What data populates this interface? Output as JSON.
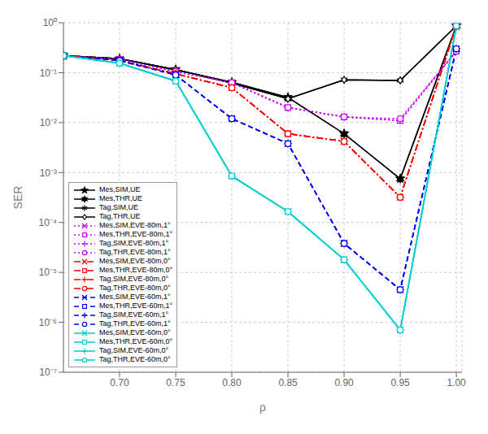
{
  "chart_data": {
    "type": "line",
    "xlabel": "ρ",
    "ylabel": "SER",
    "log": "y",
    "grid": true,
    "legend": "lower left",
    "xlim": [
      0.65,
      1.005
    ],
    "ylim": [
      1e-07,
      1.0
    ],
    "xticks": [
      {
        "value": 0.7,
        "label": "0.70"
      },
      {
        "value": 0.75,
        "label": "0.75"
      },
      {
        "value": 0.8,
        "label": "0.80"
      },
      {
        "value": 0.85,
        "label": "0.85"
      },
      {
        "value": 0.9,
        "label": "0.90"
      },
      {
        "value": 0.95,
        "label": "0.95"
      },
      {
        "value": 1.0,
        "label": "1.00"
      }
    ],
    "yticks": [
      {
        "value": 1e-07,
        "label": "10⁻⁷"
      },
      {
        "value": 1e-06,
        "label": "10⁻⁶"
      },
      {
        "value": 1e-05,
        "label": "10⁻⁵"
      },
      {
        "value": 0.0001,
        "label": "10⁻⁴"
      },
      {
        "value": 0.001,
        "label": "10⁻³"
      },
      {
        "value": 0.01,
        "label": "10⁻²"
      },
      {
        "value": 0.1,
        "label": "10⁻¹"
      },
      {
        "value": 1,
        "label": "10⁰"
      }
    ],
    "x": [
      0.65,
      0.7,
      0.75,
      0.8,
      0.85,
      0.9,
      0.95,
      1.0
    ],
    "series": [
      {
        "name": "Mes,SIM,UE",
        "color": "#000000",
        "line_style": "solid",
        "marker": "star",
        "values": [
          0.22,
          0.19,
          0.115,
          0.064,
          0.032,
          0.006,
          0.00075,
          0.87
        ]
      },
      {
        "name": "Mes,THR,UE",
        "color": "#000000",
        "line_style": "solid",
        "marker": "star6",
        "values": [
          0.22,
          0.19,
          0.115,
          0.064,
          0.032,
          0.006,
          0.00075,
          0.87
        ]
      },
      {
        "name": "Tag,SIM,UE",
        "color": "#000000",
        "line_style": "solid",
        "marker": "asterisk",
        "values": [
          0.22,
          0.19,
          0.115,
          0.062,
          0.03,
          0.072,
          0.07,
          0.87
        ]
      },
      {
        "name": "Tag,THR,UE",
        "color": "#000000",
        "line_style": "solid",
        "marker": "diamond",
        "values": [
          0.22,
          0.19,
          0.115,
          0.062,
          0.03,
          0.072,
          0.07,
          0.87
        ]
      },
      {
        "name": "Mes,SIM,EVE-80m,1°",
        "color": "#CC00FF",
        "line_style": "dotted",
        "marker": "x",
        "values": [
          0.22,
          0.185,
          0.105,
          0.063,
          0.02,
          0.013,
          0.011,
          0.27
        ]
      },
      {
        "name": "Mes,THR,EVE-80m,1°",
        "color": "#CC00FF",
        "line_style": "dotted",
        "marker": "square",
        "values": [
          0.22,
          0.185,
          0.105,
          0.063,
          0.02,
          0.013,
          0.011,
          0.27
        ]
      },
      {
        "name": "Tag,SIM,EVE-80m,1°",
        "color": "#CC00FF",
        "line_style": "dotted",
        "marker": "plus",
        "values": [
          0.22,
          0.185,
          0.105,
          0.063,
          0.02,
          0.013,
          0.011,
          0.27
        ]
      },
      {
        "name": "Tag,THR,EVE-80m,1°",
        "color": "#CC00FF",
        "line_style": "dotted",
        "marker": "circle",
        "values": [
          0.22,
          0.185,
          0.105,
          0.063,
          0.02,
          0.013,
          0.012,
          0.27
        ]
      },
      {
        "name": "Mes,SIM,EVE-80m,0°",
        "color": "#FF0000",
        "line_style": "dashdot",
        "marker": "x",
        "values": [
          0.22,
          0.175,
          0.095,
          0.05,
          0.006,
          0.0042,
          0.00032,
          0.87
        ]
      },
      {
        "name": "Mes,THR,EVE-80m,0°",
        "color": "#FF0000",
        "line_style": "dashdot",
        "marker": "square",
        "values": [
          0.22,
          0.175,
          0.095,
          0.05,
          0.006,
          0.0042,
          0.00032,
          0.87
        ]
      },
      {
        "name": "Tag,SIM,EVE-80m,0°",
        "color": "#FF0000",
        "line_style": "dashdot",
        "marker": "plus",
        "values": [
          0.22,
          0.175,
          0.095,
          0.05,
          0.006,
          0.0042,
          0.00032,
          0.87
        ]
      },
      {
        "name": "Tag,THR,EVE-80m,0°",
        "color": "#FF0000",
        "line_style": "dashdot",
        "marker": "circle",
        "values": [
          0.22,
          0.175,
          0.095,
          0.05,
          0.006,
          0.0042,
          0.00032,
          0.87
        ]
      },
      {
        "name": "Mes,SIM,EVE-60m,1°",
        "color": "#0000FF",
        "line_style": "dashed",
        "marker": "x",
        "values": [
          0.22,
          0.175,
          0.09,
          0.012,
          0.0038,
          3.8e-05,
          4.5e-06,
          0.3
        ]
      },
      {
        "name": "Mes,THR,EVE-60m,1°",
        "color": "#0000FF",
        "line_style": "dashed",
        "marker": "square",
        "values": [
          0.22,
          0.175,
          0.09,
          0.012,
          0.0038,
          3.8e-05,
          4.5e-06,
          0.3
        ]
      },
      {
        "name": "Tag,SIM,EVE-60m,1°",
        "color": "#0000FF",
        "line_style": "dashed",
        "marker": "plus",
        "values": [
          0.22,
          0.175,
          0.09,
          0.012,
          0.0038,
          3.8e-05,
          4.5e-06,
          0.3
        ]
      },
      {
        "name": "Tag,THR,EVE-60m,1°",
        "color": "#0000FF",
        "line_style": "dashed",
        "marker": "circle",
        "values": [
          0.22,
          0.175,
          0.09,
          0.012,
          0.0038,
          3.8e-05,
          4.5e-06,
          0.3
        ]
      },
      {
        "name": "Mes,SIM,EVE-60m,0°",
        "color": "#00CED1",
        "line_style": "solid",
        "marker": "x",
        "values": [
          0.22,
          0.155,
          0.068,
          0.00085,
          0.000165,
          1.8e-05,
          7e-07,
          0.87
        ]
      },
      {
        "name": "Mes,THR,EVE-60m,0°",
        "color": "#00CED1",
        "line_style": "solid",
        "marker": "square",
        "values": [
          0.22,
          0.155,
          0.068,
          0.00085,
          0.000165,
          1.8e-05,
          7e-07,
          0.87
        ]
      },
      {
        "name": "Tag,SIM,EVE-60m,0°",
        "color": "#00CED1",
        "line_style": "solid",
        "marker": "plus",
        "values": [
          0.22,
          0.155,
          0.068,
          0.00085,
          0.000165,
          1.8e-05,
          7e-07,
          0.87
        ]
      },
      {
        "name": "Tag,THR,EVE-60m,0°",
        "color": "#00CED1",
        "line_style": "solid",
        "marker": "circle",
        "values": [
          0.22,
          0.155,
          0.068,
          0.00085,
          0.000165,
          1.8e-05,
          7e-07,
          0.87
        ]
      }
    ]
  }
}
